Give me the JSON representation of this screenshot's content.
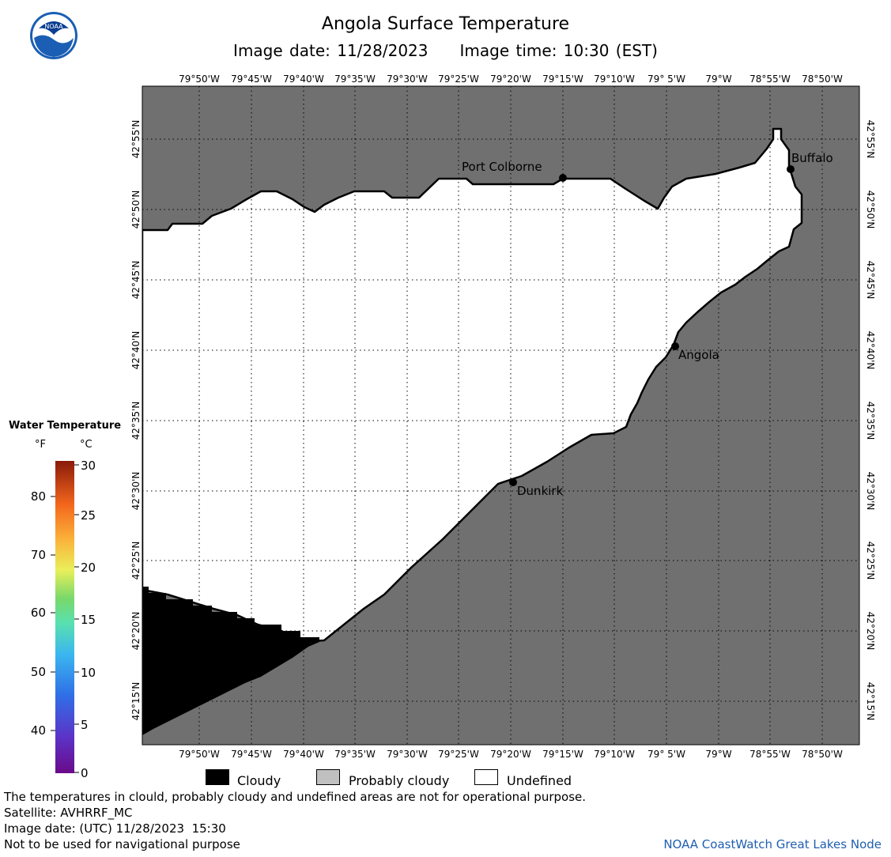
{
  "header": {
    "title": "Angola Surface Temperature",
    "image_date_label": "Image date: 11/28/2023",
    "image_time_label": "Image time: 10:30 (EST)"
  },
  "logo": {
    "icon": "noaa-logo-icon",
    "text": "NOAA"
  },
  "map": {
    "lon_labels": [
      "79°50'W",
      "79°45'W",
      "79°40'W",
      "79°35'W",
      "79°30'W",
      "79°25'W",
      "79°20'W",
      "79°15'W",
      "79°10'W",
      "79° 5'W",
      "79°W",
      "78°55'W",
      "78°50'W"
    ],
    "lat_labels": [
      "42°55'N",
      "42°50'N",
      "42°45'N",
      "42°40'N",
      "42°35'N",
      "42°30'N",
      "42°25'N",
      "42°20'N",
      "42°15'N"
    ],
    "cities": [
      {
        "name": "Port Colborne"
      },
      {
        "name": "Buffalo"
      },
      {
        "name": "Angola"
      },
      {
        "name": "Dunkirk"
      }
    ],
    "colors": {
      "land": "#707070",
      "water_undefined": "#ffffff",
      "cloudy": "#000000",
      "grid": "#000000"
    }
  },
  "colorbar": {
    "title": "Water Temperature",
    "unit_f": "°F",
    "unit_c": "°C",
    "f_ticks": [
      "80",
      "70",
      "60",
      "50",
      "40"
    ],
    "c_ticks": [
      "30",
      "25",
      "20",
      "15",
      "10",
      "5",
      "0"
    ]
  },
  "legend": {
    "cloudy": "Cloudy",
    "probably_cloudy": "Probably cloudy",
    "undefined": "Undefined",
    "colors": {
      "cloudy": "#000000",
      "probably_cloudy": "#c0c0c0",
      "undefined": "#ffffff"
    }
  },
  "footer": {
    "disclaimer": "The temperatures in clould, probably cloudy and undefined areas are not for operational purpose.",
    "satellite": "Satellite: AVHRRF_MC",
    "utc_date": "Image date: (UTC) 11/28/2023  15:30",
    "navigation": "Not to be used for navigational purpose",
    "credit": "NOAA CoastWatch Great Lakes Node"
  }
}
